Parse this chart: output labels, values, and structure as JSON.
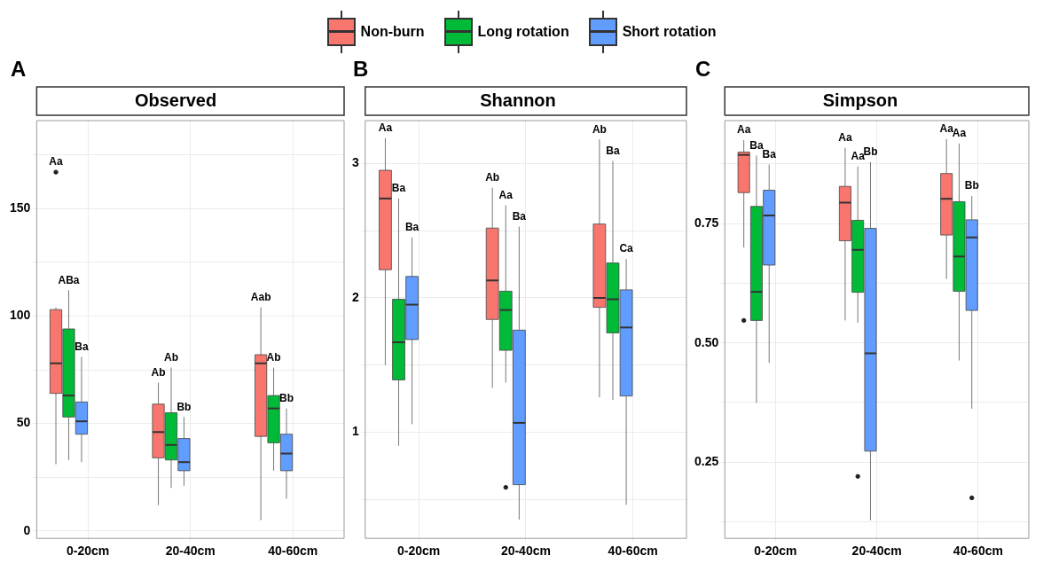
{
  "chart_data": [
    {
      "type": "box",
      "title": "Observed",
      "categories": [
        "0-20cm",
        "20-40cm",
        "40-60cm"
      ],
      "legend": "top",
      "grid": true,
      "ylim": [
        -3.5,
        191
      ],
      "yticks": [
        0,
        {
          "value": 25,
          "label": null
        },
        50,
        {
          "value": 75,
          "label": null
        },
        100,
        {
          "value": 125,
          "label": null
        },
        150,
        {
          "value": 175,
          "label": null
        }
      ],
      "series": [
        {
          "name": "Non-burn",
          "color": "#f8766d",
          "boxes": [
            {
              "low": 31,
              "q1": 64,
              "median": 78,
              "q3": 103,
              "high": 104,
              "outliers": [
                167
              ]
            },
            {
              "low": 12,
              "q1": 34,
              "median": 46,
              "q3": 59,
              "high": 69
            },
            {
              "low": 5,
              "q1": 44,
              "median": 78,
              "q3": 82,
              "high": 104
            }
          ]
        },
        {
          "name": "Long rotation",
          "color": "#00ba38",
          "boxes": [
            {
              "low": 33,
              "q1": 53,
              "median": 63,
              "q3": 94,
              "high": 112
            },
            {
              "low": 20,
              "q1": 33,
              "median": 40,
              "q3": 55,
              "high": 76
            },
            {
              "low": 28,
              "q1": 41,
              "median": 57,
              "q3": 63,
              "high": 76
            }
          ]
        },
        {
          "name": "Short rotation",
          "color": "#619cff",
          "boxes": [
            {
              "low": 32,
              "q1": 45,
              "median": 51,
              "q3": 60,
              "high": 81
            },
            {
              "low": 21,
              "q1": 28,
              "median": 32,
              "q3": 43,
              "high": 53
            },
            {
              "low": 15,
              "q1": 28,
              "median": 36,
              "q3": 45,
              "high": 57
            }
          ]
        }
      ],
      "annotations": [
        "A",
        "Aa",
        "ABa",
        "Ba",
        "Ab",
        "Ab",
        "Bb",
        "Aab",
        "Ab",
        "Bb"
      ]
    },
    {
      "type": "box",
      "title": "Shannon",
      "categories": [
        "0-20cm",
        "20-40cm",
        "40-60cm"
      ],
      "grid": true,
      "ylim": [
        0.21,
        3.32
      ],
      "yticks": [
        {
          "value": 0.5,
          "label": null
        },
        1,
        {
          "value": 1.5,
          "label": null
        },
        2,
        {
          "value": 2.5,
          "label": null
        },
        3
      ],
      "series": [
        {
          "name": "Non-burn",
          "color": "#f8766d",
          "boxes": [
            {
              "low": 1.5,
              "q1": 2.21,
              "median": 2.74,
              "q3": 2.95,
              "high": 3.19
            },
            {
              "low": 1.33,
              "q1": 1.84,
              "median": 2.13,
              "q3": 2.52,
              "high": 2.82
            },
            {
              "low": 1.26,
              "q1": 1.93,
              "median": 2.0,
              "q3": 2.55,
              "high": 3.18
            }
          ]
        },
        {
          "name": "Long rotation",
          "color": "#00ba38",
          "boxes": [
            {
              "low": 0.9,
              "q1": 1.39,
              "median": 1.67,
              "q3": 1.99,
              "high": 2.74
            },
            {
              "low": 1.37,
              "q1": 1.61,
              "median": 1.91,
              "q3": 2.05,
              "high": 2.69,
              "outliers": [
                0.59
              ]
            },
            {
              "low": 1.24,
              "q1": 1.74,
              "median": 1.99,
              "q3": 2.26,
              "high": 3.02
            }
          ]
        },
        {
          "name": "Short rotation",
          "color": "#619cff",
          "boxes": [
            {
              "low": 1.06,
              "q1": 1.69,
              "median": 1.95,
              "q3": 2.16,
              "high": 2.45
            },
            {
              "low": 0.35,
              "q1": 0.61,
              "median": 1.07,
              "q3": 1.76,
              "high": 2.53
            },
            {
              "low": 0.46,
              "q1": 1.27,
              "median": 1.78,
              "q3": 2.06,
              "high": 2.29
            }
          ]
        }
      ],
      "annotations": [
        "B",
        "Aa",
        "Ba",
        "Ba",
        "Ab",
        "Aa",
        "Ba",
        "Ab",
        "Ba",
        "Ca"
      ]
    },
    {
      "type": "box",
      "title": "Simpson",
      "categories": [
        "0-20cm",
        "20-40cm",
        "40-60cm"
      ],
      "grid": true,
      "ylim": [
        0.09,
        0.966
      ],
      "yticks": [
        {
          "value": 0.125,
          "label": null
        },
        0.25,
        {
          "value": 0.375,
          "label": null
        },
        {
          "value": 0.5,
          "label": "0.50"
        },
        {
          "value": 0.625,
          "label": null
        },
        0.75,
        {
          "value": 0.875,
          "label": null
        }
      ],
      "series": [
        {
          "name": "Non-burn",
          "color": "#f8766d",
          "boxes": [
            {
              "low": 0.7,
              "q1": 0.815,
              "median": 0.894,
              "q3": 0.9,
              "high": 0.925,
              "outliers": [
                0.547
              ]
            },
            {
              "low": 0.547,
              "q1": 0.714,
              "median": 0.794,
              "q3": 0.828,
              "high": 0.909
            },
            {
              "low": 0.634,
              "q1": 0.726,
              "median": 0.802,
              "q3": 0.855,
              "high": 0.927
            }
          ]
        },
        {
          "name": "Long rotation",
          "color": "#00ba38",
          "boxes": [
            {
              "low": 0.374,
              "q1": 0.547,
              "median": 0.607,
              "q3": 0.786,
              "high": 0.893
            },
            {
              "low": 0.542,
              "q1": 0.606,
              "median": 0.695,
              "q3": 0.757,
              "high": 0.87,
              "outliers": [
                0.22
              ]
            },
            {
              "low": 0.463,
              "q1": 0.608,
              "median": 0.681,
              "q3": 0.796,
              "high": 0.918
            }
          ]
        },
        {
          "name": "Short rotation",
          "color": "#619cff",
          "boxes": [
            {
              "low": 0.458,
              "q1": 0.663,
              "median": 0.767,
              "q3": 0.82,
              "high": 0.874
            },
            {
              "low": 0.128,
              "q1": 0.273,
              "median": 0.478,
              "q3": 0.74,
              "high": 0.879
            },
            {
              "low": 0.362,
              "q1": 0.568,
              "median": 0.721,
              "q3": 0.758,
              "high": 0.808,
              "outliers": [
                0.175
              ]
            }
          ]
        }
      ],
      "annotations": [
        "C",
        "Aa",
        "Ba",
        "Ba",
        "Aa",
        "Aa",
        "Bb",
        "Aa",
        "Aa",
        "Bb"
      ]
    }
  ]
}
